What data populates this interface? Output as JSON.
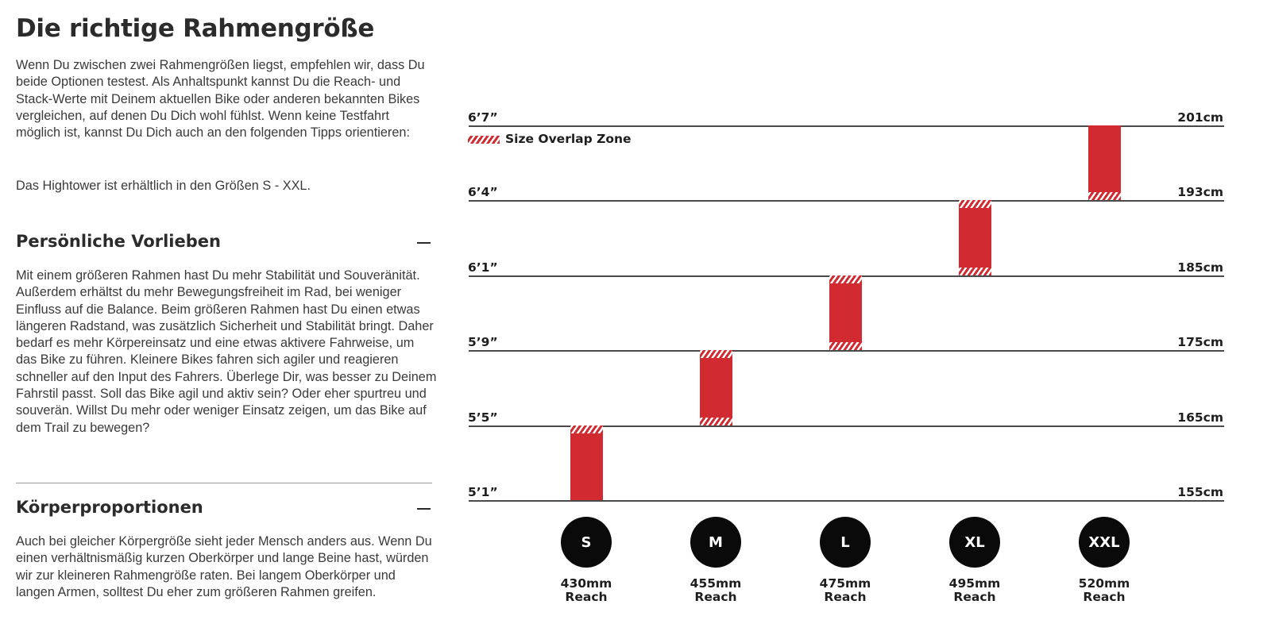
{
  "title": "Die richtige Rahmengröße",
  "intro": {
    "p1": "Wenn Du zwischen zwei Rahmengrößen liegst, empfehlen wir, dass Du beide Optionen testest. Als Anhaltspunkt kannst Du die Reach- und Stack-Werte mit Deinem aktuellen Bike oder anderen bekannten Bikes vergleichen, auf denen Du Dich wohl fühlst. Wenn keine Testfahrt möglich ist, kannst Du Dich auch an den folgenden Tipps orientieren:",
    "p2": "Das Hightower ist erhältlich in den Größen S - XXL."
  },
  "sections": [
    {
      "title": "Persönliche Vorlieben",
      "text": "Mit einem größeren Rahmen hast Du mehr Stabilität und Souveränität. Außerdem erhältst du mehr Bewegungsfreiheit im Rad, bei weniger Einfluss auf die Balance. Beim größeren Rahmen hast Du einen etwas längeren Radstand, was zusätzlich Sicherheit und Stabilität bringt. Daher bedarf es mehr Körpereinsatz und eine etwas aktivere Fahrweise, um das Bike zu führen. Kleinere Bikes fahren sich agiler und reagieren schneller auf den Input des Fahrers. Überlege Dir, was besser zu Deinem Fahrstil passt. Soll das Bike agil und aktiv sein? Oder eher spurtreu und souverän. Willst Du mehr oder weniger Einsatz zeigen, um das Bike auf dem Trail zu bewegen?"
    },
    {
      "title": "Körperproportionen",
      "text": "Auch bei gleicher Körpergröße sieht jeder Mensch anders aus. Wenn Du einen verhältnismäßig kurzen Oberkörper und lange Beine hast, würden wir zur kleineren Rahmengröße raten. Bei langem Oberkörper und langen Armen, solltest Du eher zum größeren Rahmen greifen."
    }
  ],
  "chart": {
    "legend": "Size Overlap Zone",
    "colors": {
      "bar": "#d12a30",
      "circle": "#0a0a0a"
    },
    "heights": [
      {
        "ft": "6’7”",
        "cm": "201cm"
      },
      {
        "ft": "6’4”",
        "cm": "193cm"
      },
      {
        "ft": "6’1”",
        "cm": "185cm"
      },
      {
        "ft": "5’9”",
        "cm": "175cm"
      },
      {
        "ft": "5’5”",
        "cm": "165cm"
      },
      {
        "ft": "5’1”",
        "cm": "155cm"
      }
    ],
    "sizes": [
      {
        "label": "S",
        "reach": "430mm",
        "reach_word": "Reach",
        "from": "155cm",
        "to": "165cm",
        "overlap_bottom": false,
        "overlap_top": true
      },
      {
        "label": "M",
        "reach": "455mm",
        "reach_word": "Reach",
        "from": "165cm",
        "to": "175cm",
        "overlap_bottom": true,
        "overlap_top": true
      },
      {
        "label": "L",
        "reach": "475mm",
        "reach_word": "Reach",
        "from": "175cm",
        "to": "185cm",
        "overlap_bottom": true,
        "overlap_top": true
      },
      {
        "label": "XL",
        "reach": "495mm",
        "reach_word": "Reach",
        "from": "185cm",
        "to": "193cm",
        "overlap_bottom": true,
        "overlap_top": true
      },
      {
        "label": "XXL",
        "reach": "520mm",
        "reach_word": "Reach",
        "from": "193cm",
        "to": "201cm",
        "overlap_bottom": true,
        "overlap_top": false
      }
    ]
  }
}
